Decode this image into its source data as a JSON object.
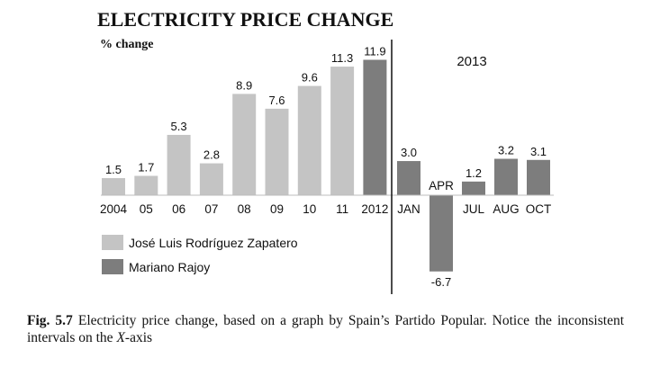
{
  "chart_data": {
    "type": "bar",
    "title": "ELECTRICITY PRICE CHANGE",
    "ylabel": "% change",
    "xlabel": "",
    "period_label": "2013",
    "categories": [
      "2004",
      "05",
      "06",
      "07",
      "08",
      "09",
      "10",
      "11",
      "2012",
      "JAN",
      "APR",
      "JUL",
      "AUG",
      "OCT"
    ],
    "values": [
      1.5,
      1.7,
      5.3,
      2.8,
      8.9,
      7.6,
      9.6,
      11.3,
      11.9,
      3.0,
      -6.7,
      1.2,
      3.2,
      3.1
    ],
    "value_labels": [
      "1.5",
      "1.7",
      "5.3",
      "2.8",
      "8.9",
      "7.6",
      "9.6",
      "11.3",
      "11.9",
      "3.0",
      "-6.7",
      "1.2",
      "3.2",
      "3.1"
    ],
    "series_membership": [
      "Zapatero",
      "Zapatero",
      "Zapatero",
      "Zapatero",
      "Zapatero",
      "Zapatero",
      "Zapatero",
      "Zapatero",
      "Rajoy",
      "Rajoy",
      "Rajoy",
      "Rajoy",
      "Rajoy",
      "Rajoy"
    ],
    "series": [
      {
        "key": "Zapatero",
        "name": "José Luis Rodríguez Zapatero",
        "color": "#c4c4c4"
      },
      {
        "key": "Rajoy",
        "name": "Mariano Rajoy",
        "color": "#7d7d7d"
      }
    ],
    "ylim": [
      -6.7,
      11.9
    ],
    "grid": false,
    "legend_position": "bottom-left"
  },
  "caption": {
    "label": "Fig. 5.7",
    "text_before": "Electricity price change, based on a graph by Spain’s Partido Popular. Notice the inconsistent intervals on the ",
    "axis_var": "X",
    "text_after": "-axis"
  }
}
